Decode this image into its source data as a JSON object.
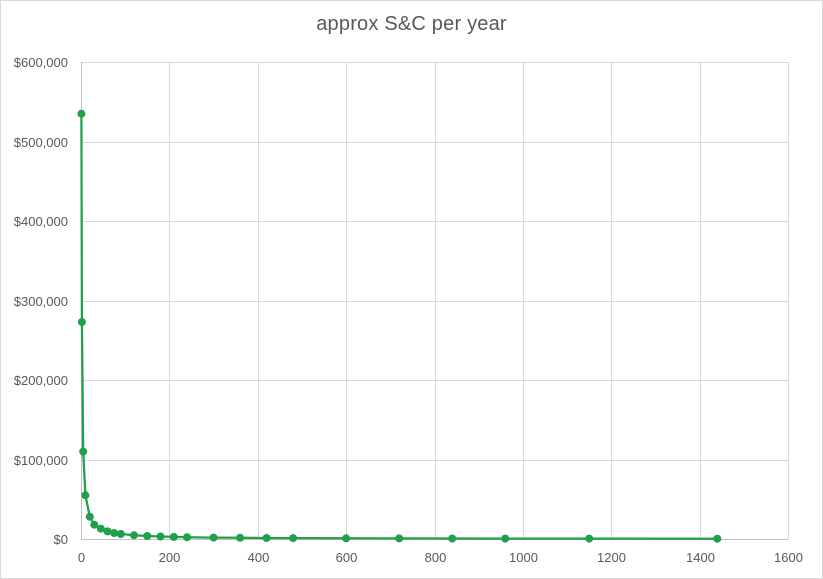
{
  "chart_data": {
    "type": "scatter",
    "title": "approx S&C per year",
    "xlabel": "",
    "ylabel": "",
    "xlim": [
      0,
      1600
    ],
    "ylim": [
      0,
      600000
    ],
    "x_ticks": [
      0,
      200,
      400,
      600,
      800,
      1000,
      1200,
      1400,
      1600
    ],
    "x_tick_labels": [
      "0",
      "200",
      "400",
      "600",
      "800",
      "1000",
      "1200",
      "1400",
      "1600"
    ],
    "y_ticks": [
      0,
      100000,
      200000,
      300000,
      400000,
      500000,
      600000
    ],
    "y_tick_labels": [
      "$0",
      "$100,000",
      "$200,000",
      "$300,000",
      "$400,000",
      "$500,000",
      "$600,000"
    ],
    "grid": true,
    "legend": "none",
    "color": "#1fa049",
    "connected": true,
    "points": [
      {
        "x": 1,
        "y": 535000
      },
      {
        "x": 2,
        "y": 273000
      },
      {
        "x": 5,
        "y": 110000
      },
      {
        "x": 10,
        "y": 55000
      },
      {
        "x": 20,
        "y": 28000
      },
      {
        "x": 30,
        "y": 18000
      },
      {
        "x": 45,
        "y": 13000
      },
      {
        "x": 60,
        "y": 9500
      },
      {
        "x": 75,
        "y": 7500
      },
      {
        "x": 90,
        "y": 6300
      },
      {
        "x": 120,
        "y": 4800
      },
      {
        "x": 150,
        "y": 3800
      },
      {
        "x": 180,
        "y": 3100
      },
      {
        "x": 210,
        "y": 2700
      },
      {
        "x": 240,
        "y": 2300
      },
      {
        "x": 300,
        "y": 1800
      },
      {
        "x": 360,
        "y": 1500
      },
      {
        "x": 420,
        "y": 1300
      },
      {
        "x": 480,
        "y": 1100
      },
      {
        "x": 600,
        "y": 900
      },
      {
        "x": 720,
        "y": 750
      },
      {
        "x": 840,
        "y": 650
      },
      {
        "x": 960,
        "y": 560
      },
      {
        "x": 1150,
        "y": 470
      },
      {
        "x": 1440,
        "y": 370
      }
    ]
  }
}
